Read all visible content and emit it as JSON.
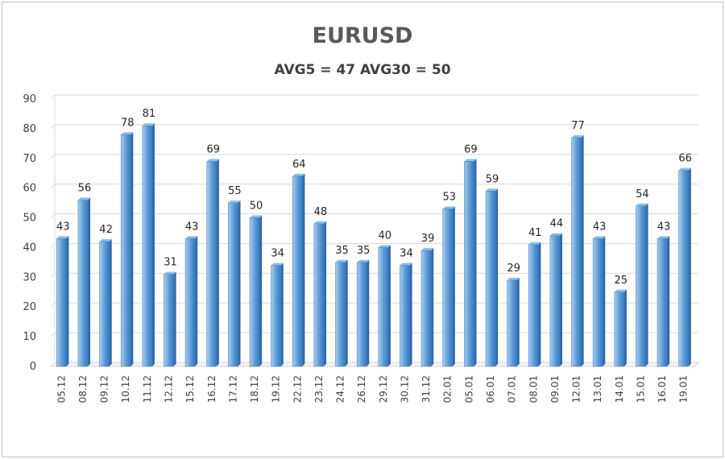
{
  "chart_data": {
    "type": "bar",
    "title": "EURUSD",
    "subtitle": "AVG5 = 47 AVG30 = 50",
    "categories": [
      "05.12",
      "08.12",
      "09.12",
      "10.12",
      "11.12",
      "12.12",
      "15.12",
      "16.12",
      "17.12",
      "18.12",
      "19.12",
      "22.12",
      "23.12",
      "24.12",
      "26.12",
      "29.12",
      "30.12",
      "31.12",
      "02.01",
      "05.01",
      "06.01",
      "07.01",
      "08.01",
      "09.01",
      "12.01",
      "13.01",
      "14.01",
      "15.01",
      "16.01",
      "19.01"
    ],
    "values": [
      43,
      56,
      42,
      78,
      81,
      31,
      43,
      69,
      55,
      50,
      34,
      64,
      48,
      35,
      35,
      40,
      34,
      39,
      53,
      69,
      59,
      29,
      41,
      44,
      77,
      43,
      25,
      54,
      43,
      66
    ],
    "ylim": [
      0,
      90
    ],
    "yticks": [
      0,
      10,
      20,
      30,
      40,
      50,
      60,
      70,
      80,
      90
    ],
    "xlabel": "",
    "ylabel": "",
    "grid": true,
    "colors": {
      "bar_light": "#a9cdf0",
      "bar_mid": "#5b9bd5",
      "bar_dark": "#2e6aa8",
      "grid": "#d9d9d9"
    }
  }
}
